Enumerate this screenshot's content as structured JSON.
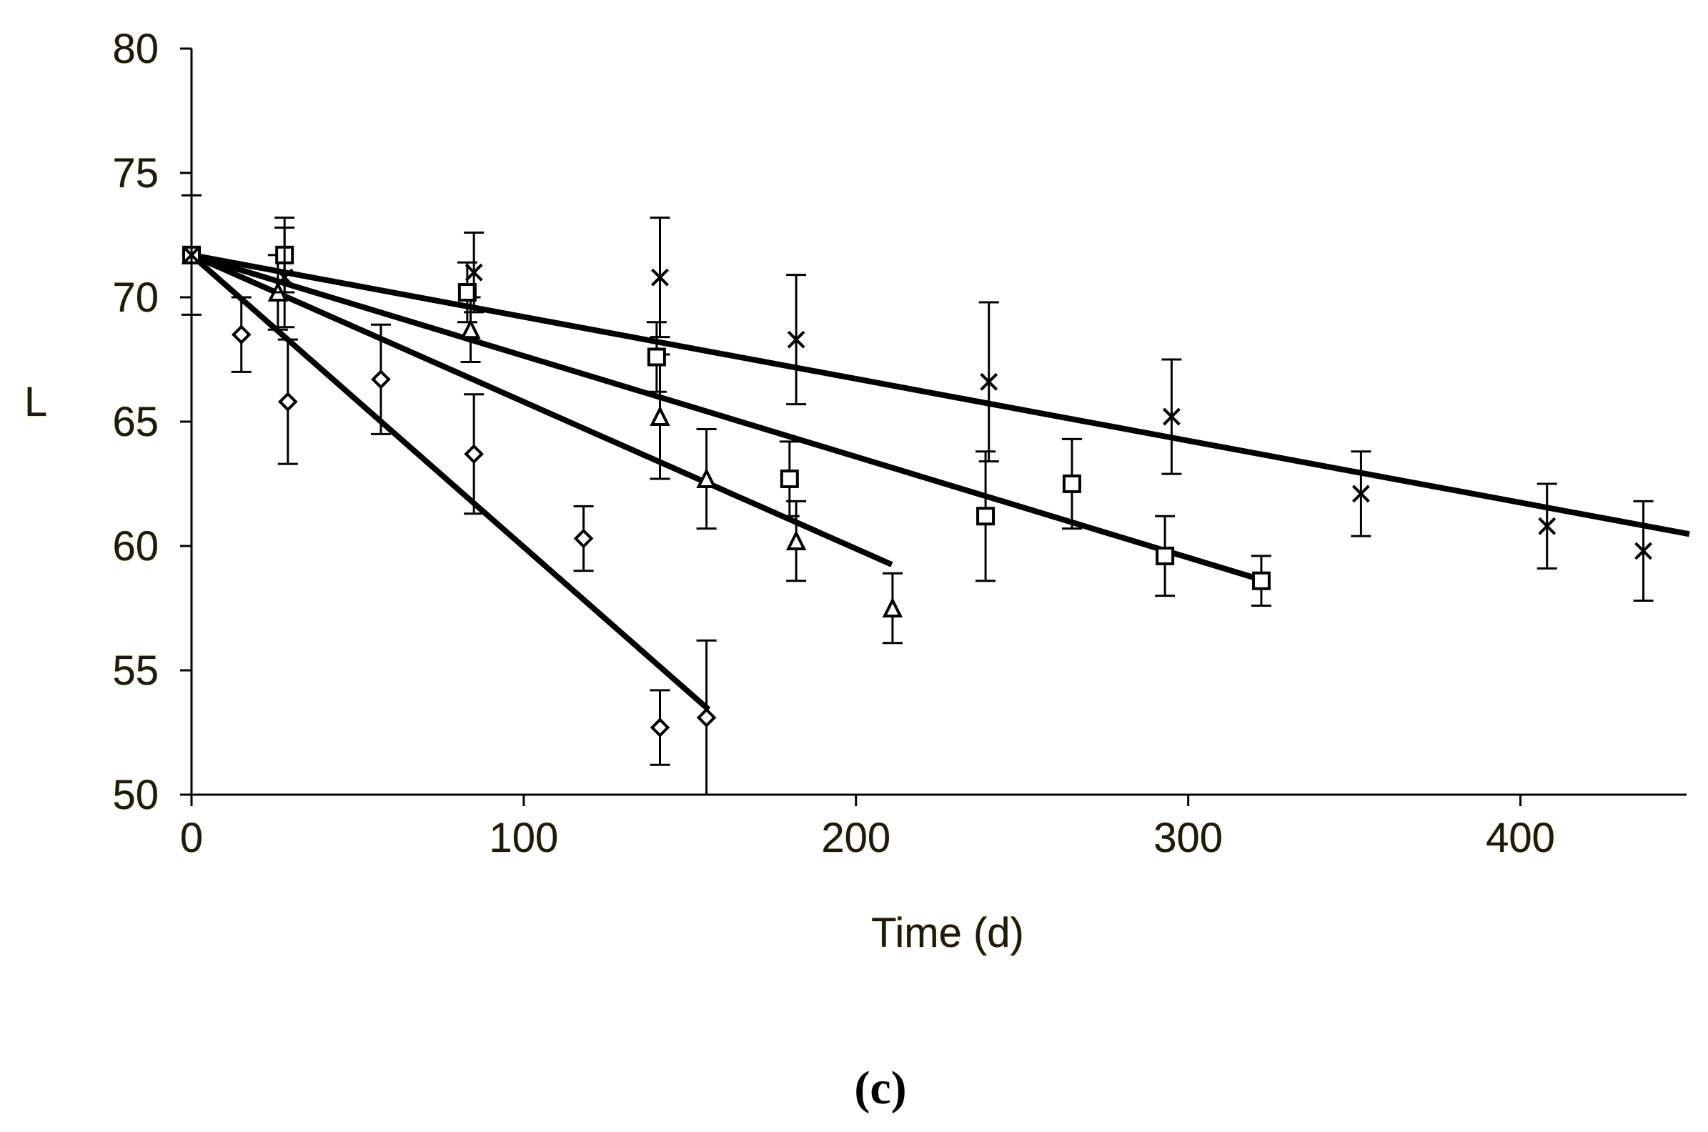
{
  "panel_label": "(c)",
  "chart_data": {
    "type": "scatter",
    "xlabel": "Time (d)",
    "ylabel": "L",
    "xlim": [
      0,
      450
    ],
    "ylim": [
      50,
      80
    ],
    "x_ticks": [
      0,
      100,
      200,
      300,
      400
    ],
    "y_ticks": [
      50,
      55,
      60,
      65,
      70,
      75,
      80
    ],
    "grid": false,
    "colors": {
      "axis": "#000000",
      "data": "#000000",
      "tick_text": "#1a1a1a",
      "tick_text_outline": "#c8a200"
    },
    "series": [
      {
        "marker": "diamond",
        "fit": {
          "x_start": 0,
          "y_start": 71.7,
          "x_end": 155,
          "y_end": 53.5
        },
        "points": [
          {
            "x": 0,
            "y": 71.7,
            "err": 0
          },
          {
            "x": 15,
            "y": 68.5,
            "err": 1.5
          },
          {
            "x": 29,
            "y": 65.8,
            "err": 2.5
          },
          {
            "x": 57,
            "y": 66.7,
            "err": 2.2
          },
          {
            "x": 85,
            "y": 63.7,
            "err": 2.4
          },
          {
            "x": 118,
            "y": 60.3,
            "err": 1.3
          },
          {
            "x": 141,
            "y": 52.7,
            "err": 1.5
          },
          {
            "x": 155,
            "y": 53.1,
            "err": 3.1
          }
        ]
      },
      {
        "marker": "triangle",
        "fit": {
          "x_start": 0,
          "y_start": 71.7,
          "x_end": 210,
          "y_end": 59.3
        },
        "points": [
          {
            "x": 0,
            "y": 71.7,
            "err": 0
          },
          {
            "x": 26,
            "y": 70.2,
            "err": 1.5
          },
          {
            "x": 84,
            "y": 68.7,
            "err": 1.3
          },
          {
            "x": 141,
            "y": 65.2,
            "err": 2.5
          },
          {
            "x": 155,
            "y": 62.7,
            "err": 2.0
          },
          {
            "x": 182,
            "y": 60.2,
            "err": 1.6
          },
          {
            "x": 211,
            "y": 57.5,
            "err": 1.4
          }
        ]
      },
      {
        "marker": "square",
        "fit": {
          "x_start": 0,
          "y_start": 71.7,
          "x_end": 323,
          "y_end": 58.6
        },
        "points": [
          {
            "x": 0,
            "y": 71.7,
            "err": 0
          },
          {
            "x": 28,
            "y": 71.7,
            "err": 1.5
          },
          {
            "x": 83,
            "y": 70.2,
            "err": 1.2
          },
          {
            "x": 140,
            "y": 67.6,
            "err": 1.4
          },
          {
            "x": 180,
            "y": 62.7,
            "err": 1.5
          },
          {
            "x": 239,
            "y": 61.2,
            "err": 2.6
          },
          {
            "x": 265,
            "y": 62.5,
            "err": 1.8
          },
          {
            "x": 293,
            "y": 59.6,
            "err": 1.6
          },
          {
            "x": 322,
            "y": 58.6,
            "err": 1.0
          }
        ]
      },
      {
        "marker": "cross",
        "fit": {
          "x_start": 0,
          "y_start": 71.7,
          "x_end": 450,
          "y_end": 60.5
        },
        "points": [
          {
            "x": 0,
            "y": 71.7,
            "err": 2.4
          },
          {
            "x": 28,
            "y": 70.8,
            "err": 2.0
          },
          {
            "x": 85,
            "y": 71.0,
            "err": 1.6
          },
          {
            "x": 141,
            "y": 70.8,
            "err": 2.4
          },
          {
            "x": 182,
            "y": 68.3,
            "err": 2.6
          },
          {
            "x": 240,
            "y": 66.6,
            "err": 3.2
          },
          {
            "x": 295,
            "y": 65.2,
            "err": 2.3
          },
          {
            "x": 352,
            "y": 62.1,
            "err": 1.7
          },
          {
            "x": 408,
            "y": 60.8,
            "err": 1.7
          },
          {
            "x": 437,
            "y": 59.8,
            "err": 2.0
          }
        ]
      }
    ]
  }
}
